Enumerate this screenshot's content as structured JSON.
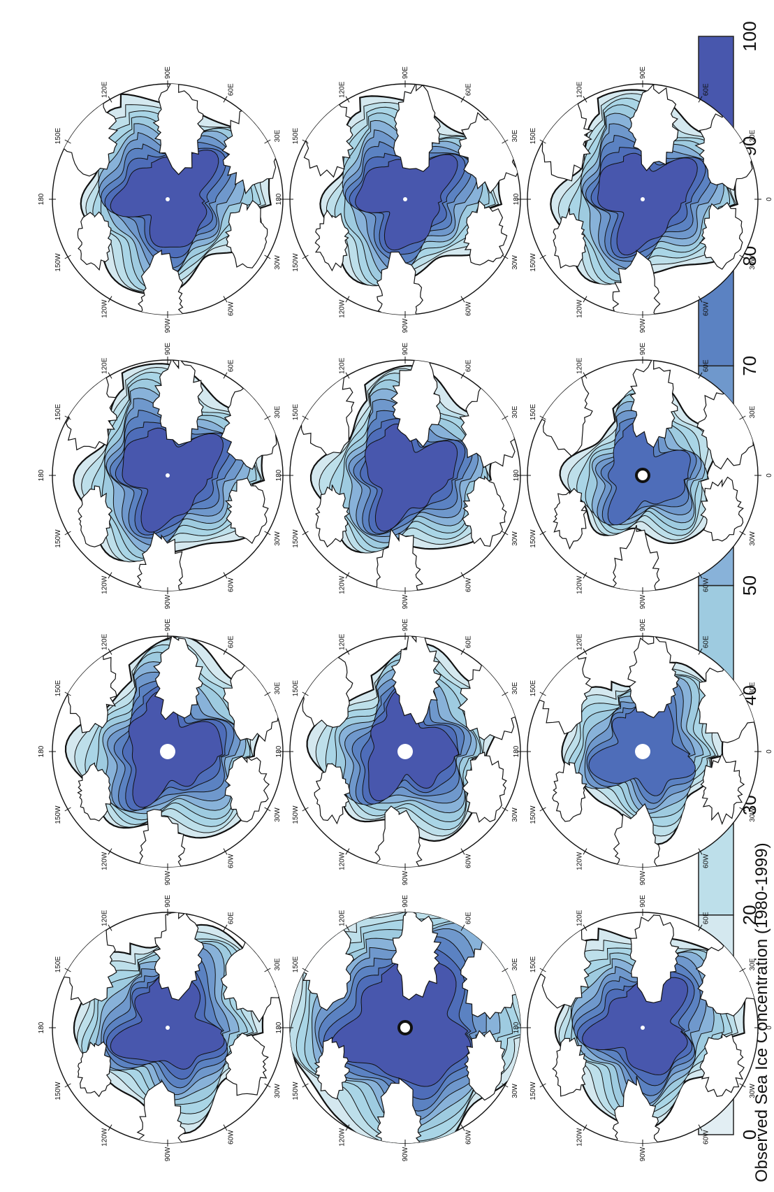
{
  "figure": {
    "title": "Observed Sea Ice Concentration (1980-1999)"
  },
  "colorbar": {
    "ticks": [
      "0",
      "10",
      "20",
      "30",
      "40",
      "50",
      "60",
      "70",
      "80",
      "90",
      "100"
    ],
    "colors": [
      "#ffffff",
      "#e2eef3",
      "#d4e8ef",
      "#bddfea",
      "#a9d5e6",
      "#9ecbe0",
      "#88b2d9",
      "#6f98cc",
      "#5b82c2",
      "#4e6db9",
      "#4857ad"
    ],
    "vmin": 0,
    "vmax": 100,
    "interval": 10
  },
  "map_labels": {
    "longitudes": [
      "0",
      "30E",
      "60E",
      "90E",
      "120E",
      "150E",
      "180",
      "150W",
      "120W",
      "90W",
      "60W",
      "30W"
    ]
  },
  "panels": [
    {
      "row": 0,
      "col": 0,
      "pole_hole": "small",
      "extent": "winter",
      "max_conc": 95
    },
    {
      "row": 0,
      "col": 1,
      "pole_hole": "large",
      "extent": "winter",
      "max_conc": 95
    },
    {
      "row": 0,
      "col": 2,
      "pole_hole": "small",
      "extent": "winter",
      "max_conc": 95
    },
    {
      "row": 0,
      "col": 3,
      "pole_hole": "small",
      "extent": "winter",
      "max_conc": 95
    },
    {
      "row": 1,
      "col": 0,
      "pole_hole": "ring",
      "extent": "full",
      "max_conc": 95
    },
    {
      "row": 1,
      "col": 1,
      "pole_hole": "large",
      "extent": "spring",
      "max_conc": 90
    },
    {
      "row": 1,
      "col": 2,
      "pole_hole": "none",
      "extent": "spring",
      "max_conc": 90
    },
    {
      "row": 1,
      "col": 3,
      "pole_hole": "small",
      "extent": "spring",
      "max_conc": 90
    },
    {
      "row": 2,
      "col": 0,
      "pole_hole": "small",
      "extent": "winter",
      "max_conc": 95
    },
    {
      "row": 2,
      "col": 1,
      "pole_hole": "large",
      "extent": "summer",
      "max_conc": 85
    },
    {
      "row": 2,
      "col": 2,
      "pole_hole": "ring",
      "extent": "minimum",
      "max_conc": 80
    },
    {
      "row": 2,
      "col": 3,
      "pole_hole": "small",
      "extent": "autumn",
      "max_conc": 95
    }
  ]
}
